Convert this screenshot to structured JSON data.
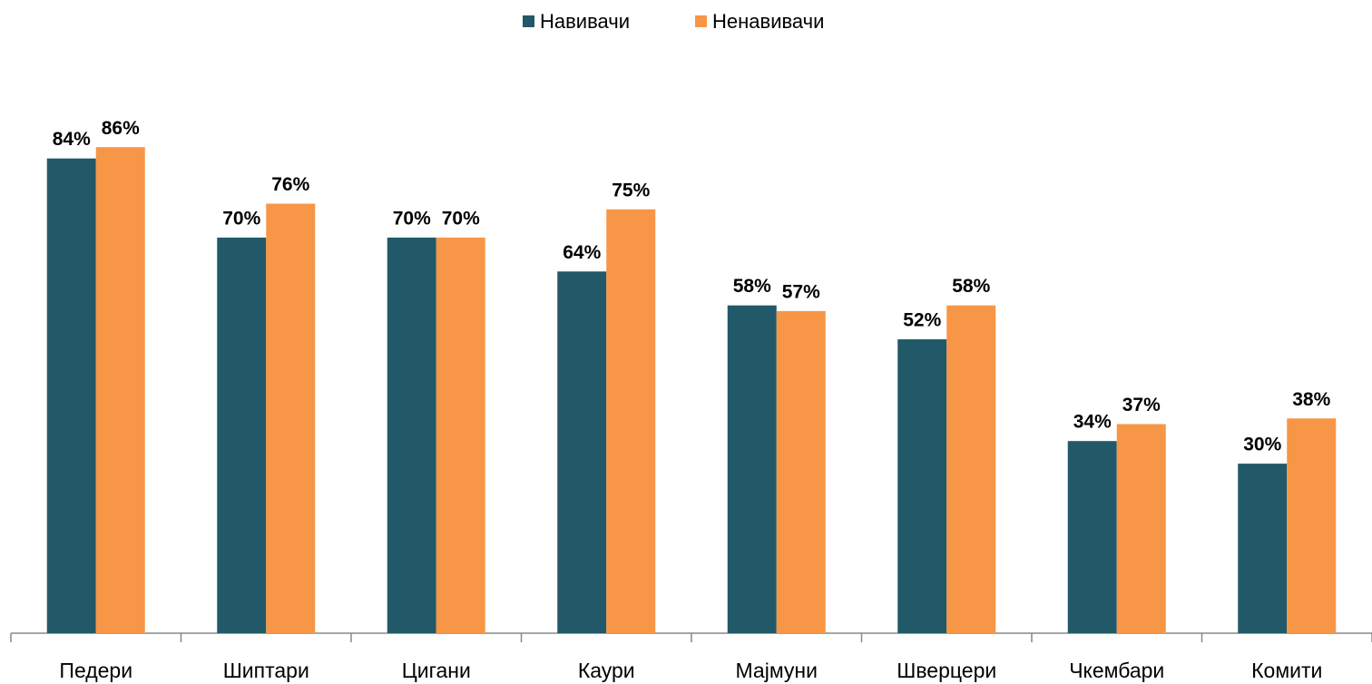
{
  "chart_data": {
    "type": "bar",
    "categories": [
      "Педери",
      "Шиптари",
      "Цигани",
      "Каури",
      "Мајмуни",
      "Шверцери",
      "Чкембари",
      "Комити"
    ],
    "series": [
      {
        "name": "Навивачи",
        "color": "#215968",
        "values": [
          84,
          70,
          70,
          64,
          58,
          52,
          34,
          30
        ],
        "value_labels": [
          "84%",
          "70%",
          "70%",
          "64%",
          "58%",
          "52%",
          "34%",
          "30%"
        ]
      },
      {
        "name": "Ненавивачи",
        "color": "#f79646",
        "values": [
          86,
          76,
          70,
          75,
          57,
          58,
          37,
          38
        ],
        "value_labels": [
          "86%",
          "76%",
          "70%",
          "75%",
          "57%",
          "58%",
          "37%",
          "38%"
        ]
      }
    ],
    "ylim": [
      0,
      100
    ],
    "legend": "top"
  }
}
